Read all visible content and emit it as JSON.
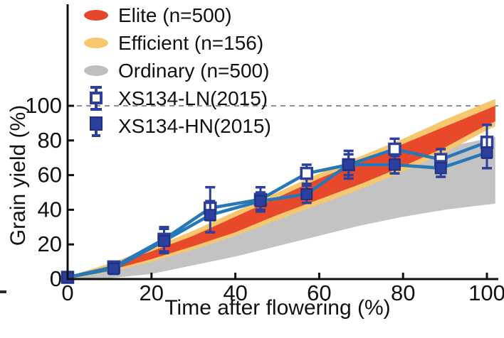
{
  "figure": {
    "type_label": "line chart with confidence bands"
  },
  "axes": {
    "xlabel": "Time after flowering (%)",
    "ylabel": "Grain yield (%)"
  },
  "legend": {
    "items": [
      {
        "label": "Elite (n=500)",
        "swatch": "ellipse",
        "color": "#E3472C"
      },
      {
        "label": "Efficient (n=156)",
        "swatch": "ellipse",
        "color": "#F6C76F"
      },
      {
        "label": "Ordinary (n=500)",
        "swatch": "ellipse",
        "color": "#BFBFBF"
      },
      {
        "label": "XS134-LN(2015)",
        "swatch": "open-square",
        "color": "#2B3F9E"
      },
      {
        "label": "XS134-HN(2015)",
        "swatch": "filled-square",
        "color": "#2B3F9E"
      }
    ]
  },
  "chart_data": {
    "type": "line",
    "title": "",
    "xlabel": "Time after flowering (%)",
    "ylabel": "Grain yield (%)",
    "xlim": [
      0,
      100
    ],
    "ylim": [
      0,
      100
    ],
    "x_ticks": [
      0,
      20,
      40,
      60,
      80,
      100
    ],
    "y_ticks": [
      0,
      20,
      40,
      60,
      80,
      100
    ],
    "reference_line_y": 100,
    "reference_line_style": "dashed",
    "grid": false,
    "legend_position": "upper left",
    "colors": {
      "axis": "#111111",
      "dashed_line": "#909090",
      "series_line": "#2878B8",
      "marker_fill": "#2B3F9E",
      "marker_stroke": "#22307E"
    },
    "bands": [
      {
        "name": "Ordinary (n=500)",
        "color": "#C3C3C3",
        "points": [
          [
            0,
            0.5,
            0
          ],
          [
            10,
            5,
            0.5
          ],
          [
            20,
            13,
            3
          ],
          [
            30,
            21,
            8
          ],
          [
            40,
            30,
            13
          ],
          [
            50,
            39,
            19
          ],
          [
            60,
            49,
            25
          ],
          [
            70,
            60,
            31
          ],
          [
            80,
            69,
            36
          ],
          [
            90,
            76,
            40
          ],
          [
            100,
            81,
            43
          ],
          [
            102,
            82,
            43.5
          ]
        ]
      },
      {
        "name": "Efficient (n=156)",
        "color": "#F6C76F",
        "points": [
          [
            0,
            1.5,
            0
          ],
          [
            10,
            9,
            4
          ],
          [
            20,
            18,
            10
          ],
          [
            30,
            28,
            17
          ],
          [
            40,
            39,
            25
          ],
          [
            50,
            50,
            34
          ],
          [
            60,
            61,
            43
          ],
          [
            70,
            71,
            52
          ],
          [
            80,
            81,
            62
          ],
          [
            90,
            92,
            73
          ],
          [
            100,
            102,
            86
          ],
          [
            102,
            104,
            88
          ]
        ]
      },
      {
        "name": "Elite (n=500)",
        "color": "#E8492B",
        "points": [
          [
            0,
            1,
            0
          ],
          [
            10,
            7.5,
            5
          ],
          [
            20,
            16,
            11.5
          ],
          [
            30,
            25,
            19
          ],
          [
            40,
            36,
            27
          ],
          [
            50,
            47,
            37
          ],
          [
            60,
            58,
            46
          ],
          [
            70,
            68,
            55
          ],
          [
            80,
            78,
            65
          ],
          [
            90,
            88,
            76
          ],
          [
            100,
            98,
            89
          ],
          [
            102,
            100,
            91
          ]
        ]
      }
    ],
    "series": [
      {
        "name": "XS134-LN(2015)",
        "marker": "open-square",
        "x": [
          0,
          11,
          23,
          34,
          46,
          57,
          67,
          78,
          89,
          100
        ],
        "y": [
          1,
          7,
          23,
          41,
          46,
          61,
          66,
          75,
          69,
          79
        ],
        "err_lo": [
          0,
          4,
          16,
          34,
          39,
          55,
          58,
          69,
          63,
          70
        ],
        "err_hi": [
          2,
          10,
          30,
          53,
          53,
          66,
          74,
          81,
          75,
          89
        ]
      },
      {
        "name": "XS134-HN(2015)",
        "marker": "filled-square",
        "x": [
          0,
          11,
          23,
          34,
          46,
          57,
          67,
          78,
          89,
          100
        ],
        "y": [
          1,
          6,
          22,
          37,
          45,
          49,
          66,
          66,
          64,
          73
        ],
        "err_lo": [
          0,
          3,
          15,
          27,
          40,
          44,
          60,
          61,
          59,
          64
        ],
        "err_hi": [
          2,
          9,
          29,
          45,
          50,
          54,
          72,
          71,
          68,
          82
        ]
      }
    ]
  }
}
